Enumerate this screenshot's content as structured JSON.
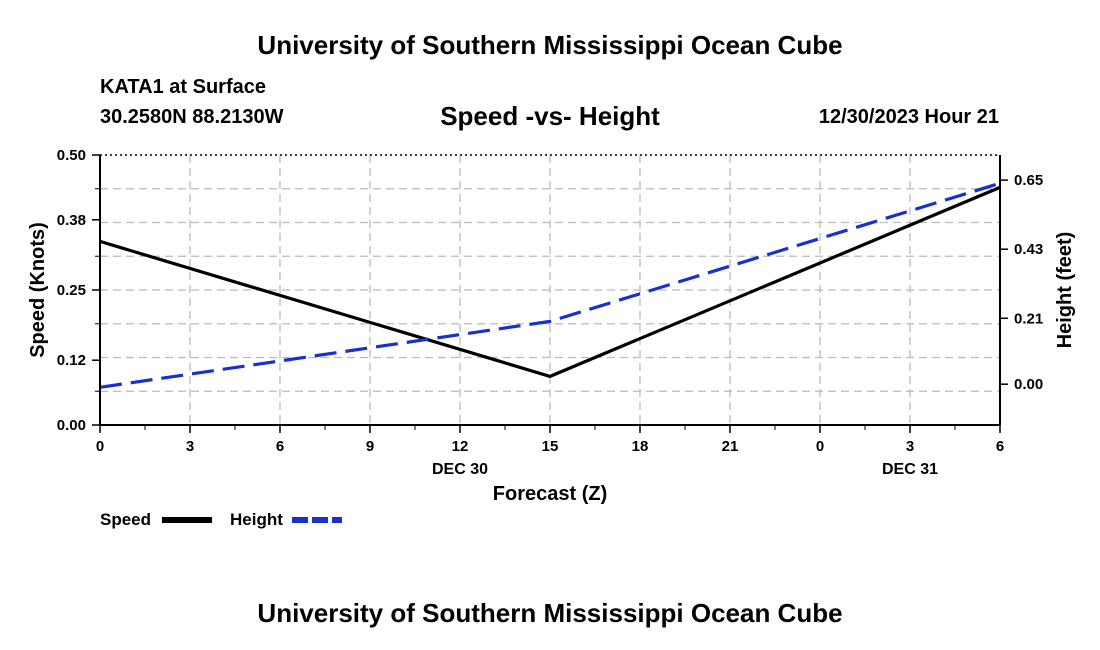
{
  "header": {
    "title": "University of Southern Mississippi Ocean Cube",
    "station": "KATA1 at Surface",
    "coords": "30.2580N  88.2130W",
    "subtitle": "Speed -vs- Height",
    "datetime": "12/30/2023 Hour 21"
  },
  "footer": {
    "title": "University of Southern Mississippi Ocean Cube"
  },
  "colors": {
    "speed": "#000000",
    "height": "#1a2fd0",
    "grid": "#bbbbbb"
  },
  "chart_data": {
    "type": "line",
    "title": "Speed -vs- Height",
    "xlabel": "Forecast (Z)",
    "ylabel": "Speed (Knots)",
    "y2label": "Height (feet)",
    "x_hours": [
      0,
      3,
      6,
      9,
      12,
      15,
      18,
      21,
      24,
      27,
      30
    ],
    "x_tick_labels": [
      "0",
      "3",
      "6",
      "9",
      "12",
      "15",
      "18",
      "21",
      "0",
      "3",
      "6"
    ],
    "date_labels": [
      {
        "hour": 12,
        "label": "DEC 30"
      },
      {
        "hour": 27,
        "label": "DEC 31"
      }
    ],
    "xlim": [
      0,
      30
    ],
    "ylim": [
      0,
      0.5
    ],
    "y_ticks": [
      0.0,
      0.12,
      0.25,
      0.38,
      0.5
    ],
    "y_tick_labels": [
      "0.00",
      "0.12",
      "0.25",
      "0.38",
      "0.50"
    ],
    "y2lim": [
      -0.13,
      0.73
    ],
    "y2_ticks": [
      0.0,
      0.21,
      0.43,
      0.65
    ],
    "y2_tick_labels": [
      "0.00",
      "0.21",
      "0.43",
      "0.65"
    ],
    "grid": true,
    "series": [
      {
        "name": "Speed",
        "axis": "left",
        "style": "solid",
        "x": [
          0,
          15,
          30
        ],
        "values": [
          0.34,
          0.09,
          0.44
        ]
      },
      {
        "name": "Height",
        "axis": "right",
        "style": "dashed",
        "x": [
          0,
          15,
          30
        ],
        "values": [
          -0.01,
          0.2,
          0.64
        ]
      }
    ],
    "legend": [
      {
        "label": "Speed",
        "series": "Speed"
      },
      {
        "label": "Height",
        "series": "Height"
      }
    ]
  }
}
